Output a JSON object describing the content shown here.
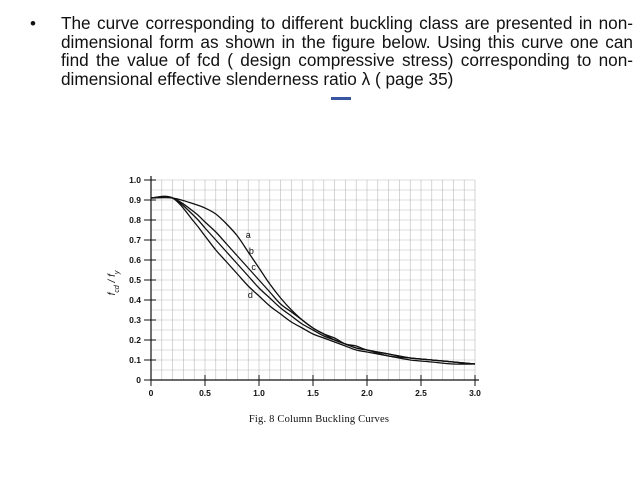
{
  "slide": {
    "bullet_symbol": "•",
    "bullet_text": "The curve corresponding to different buckling class are presented in non-dimensional form as shown in the figure below. Using this curve one can find the value of fcd ( design compressive stress) corresponding to non- dimensional effective slenderness ratio λ ( page 35)",
    "macron_color": "#3a56a3"
  },
  "chart_data": {
    "type": "line",
    "caption": "Fig. 8 Column Buckling Curves",
    "ylabel": "fcd / fy",
    "xlabel": "",
    "xlim": [
      0,
      3.0
    ],
    "ylim": [
      0,
      1.0
    ],
    "grid": true,
    "x_ticks": [
      0,
      0.5,
      1.0,
      1.5,
      2.0,
      2.5,
      3.0
    ],
    "x_tick_labels": [
      "0",
      "0.5",
      "1.0",
      "1.5",
      "2.0",
      "2.5",
      "3.0"
    ],
    "y_ticks": [
      0,
      0.1,
      0.2,
      0.3,
      0.4,
      0.5,
      0.6,
      0.7,
      0.8,
      0.9,
      1.0
    ],
    "y_tick_labels": [
      "0",
      "0.1",
      "0.2",
      "0.3",
      "0.4",
      "0.5",
      "0.6",
      "0.7",
      "0.8",
      "0.9",
      "1.0"
    ],
    "line_color": "#111111",
    "series": [
      {
        "name": "a",
        "x": [
          0,
          0.2,
          0.4,
          0.5,
          0.6,
          0.7,
          0.8,
          0.9,
          1.0,
          1.1,
          1.2,
          1.3,
          1.4,
          1.5,
          1.6,
          1.7,
          1.8,
          1.9,
          2.0,
          2.2,
          2.4,
          2.6,
          2.8,
          3.0
        ],
        "y": [
          0.91,
          0.91,
          0.88,
          0.86,
          0.83,
          0.78,
          0.72,
          0.64,
          0.56,
          0.48,
          0.41,
          0.35,
          0.3,
          0.26,
          0.23,
          0.2,
          0.18,
          0.16,
          0.15,
          0.13,
          0.11,
          0.1,
          0.09,
          0.08
        ]
      },
      {
        "name": "b",
        "x": [
          0,
          0.2,
          0.4,
          0.5,
          0.6,
          0.7,
          0.8,
          0.9,
          1.0,
          1.1,
          1.2,
          1.3,
          1.4,
          1.5,
          1.6,
          1.7,
          1.8,
          1.9,
          2.0,
          2.2,
          2.4,
          2.6,
          2.8,
          3.0
        ],
        "y": [
          0.91,
          0.91,
          0.84,
          0.79,
          0.74,
          0.68,
          0.62,
          0.56,
          0.5,
          0.44,
          0.38,
          0.34,
          0.3,
          0.26,
          0.23,
          0.21,
          0.18,
          0.17,
          0.15,
          0.13,
          0.11,
          0.1,
          0.09,
          0.08
        ]
      },
      {
        "name": "c",
        "x": [
          0,
          0.2,
          0.4,
          0.5,
          0.6,
          0.7,
          0.8,
          0.9,
          1.0,
          1.1,
          1.2,
          1.3,
          1.4,
          1.5,
          1.6,
          1.7,
          1.8,
          1.9,
          2.0,
          2.2,
          2.4,
          2.6,
          2.8,
          3.0
        ],
        "y": [
          0.91,
          0.91,
          0.82,
          0.76,
          0.7,
          0.64,
          0.58,
          0.52,
          0.46,
          0.41,
          0.36,
          0.32,
          0.28,
          0.25,
          0.22,
          0.2,
          0.18,
          0.16,
          0.15,
          0.12,
          0.11,
          0.1,
          0.09,
          0.08
        ]
      },
      {
        "name": "d",
        "x": [
          0,
          0.2,
          0.4,
          0.5,
          0.6,
          0.7,
          0.8,
          0.9,
          1.0,
          1.1,
          1.2,
          1.3,
          1.4,
          1.5,
          1.6,
          1.7,
          1.8,
          1.9,
          2.0,
          2.2,
          2.4,
          2.6,
          2.8,
          3.0
        ],
        "y": [
          0.91,
          0.91,
          0.79,
          0.72,
          0.65,
          0.59,
          0.53,
          0.47,
          0.42,
          0.37,
          0.33,
          0.29,
          0.26,
          0.23,
          0.21,
          0.19,
          0.17,
          0.15,
          0.14,
          0.12,
          0.1,
          0.09,
          0.08,
          0.08
        ]
      }
    ],
    "annotations": [
      {
        "text": "a",
        "x": 0.9,
        "y": 0.71
      },
      {
        "text": "b",
        "x": 0.93,
        "y": 0.63
      },
      {
        "text": "c",
        "x": 0.95,
        "y": 0.55
      },
      {
        "text": "d",
        "x": 0.92,
        "y": 0.41
      }
    ]
  }
}
